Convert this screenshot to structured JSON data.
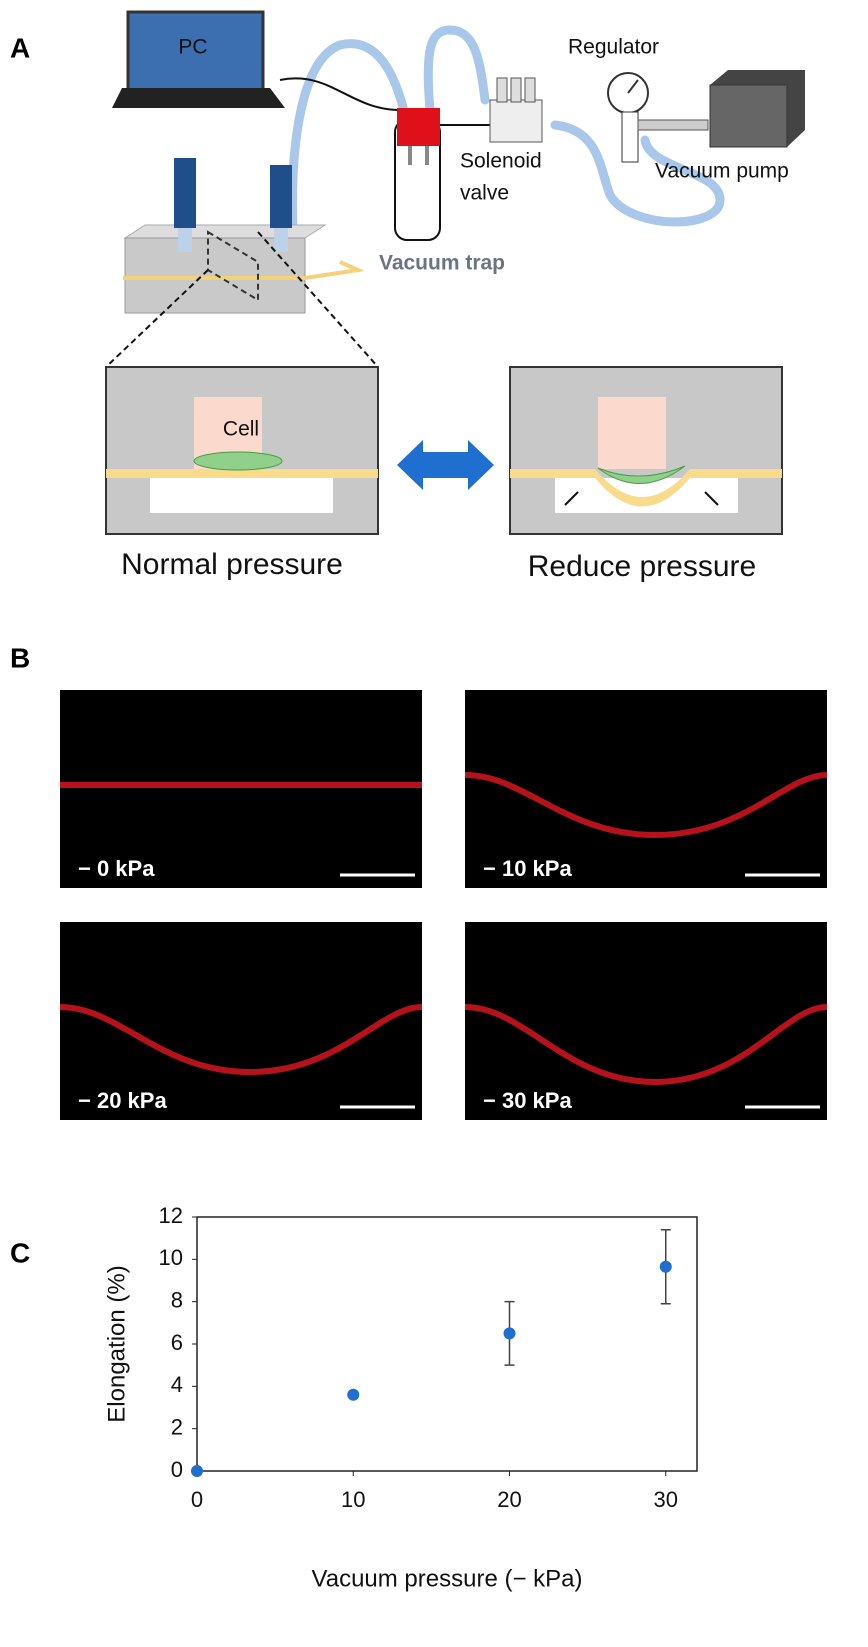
{
  "panel_a": {
    "label": "A",
    "pc": "PC",
    "regulator": "Regulator",
    "solenoid_valve": [
      "Solenoid",
      "valve"
    ],
    "vacuum_pump": "Vacuum pump",
    "vacuum_trap": "Vacuum trap",
    "cell": "Cell",
    "normal_pressure": "Normal pressure",
    "reduce_pressure": "Reduce pressure"
  },
  "panel_b": {
    "label": "B",
    "images": [
      {
        "label": "− 0 kPa"
      },
      {
        "label": "− 10 kPa"
      },
      {
        "label": "− 20 kPa"
      },
      {
        "label": "− 30 kPa"
      }
    ]
  },
  "chart_data": {
    "type": "scatter",
    "panel_label": "C",
    "x_label": "Vacuum pressure (− kPa)",
    "y_label": "Elongation (%)",
    "x": [
      0,
      10,
      20,
      30
    ],
    "values": [
      0,
      3.6,
      6.5,
      9.65
    ],
    "errors": [
      0,
      0.1,
      1.5,
      1.75
    ],
    "color": "#1f6fd1",
    "xlim": [
      0,
      32
    ],
    "xticks": [
      0,
      10,
      20,
      30
    ],
    "ylim": [
      0,
      12
    ],
    "yticks": [
      0,
      2,
      4,
      6,
      8,
      10,
      12
    ]
  }
}
